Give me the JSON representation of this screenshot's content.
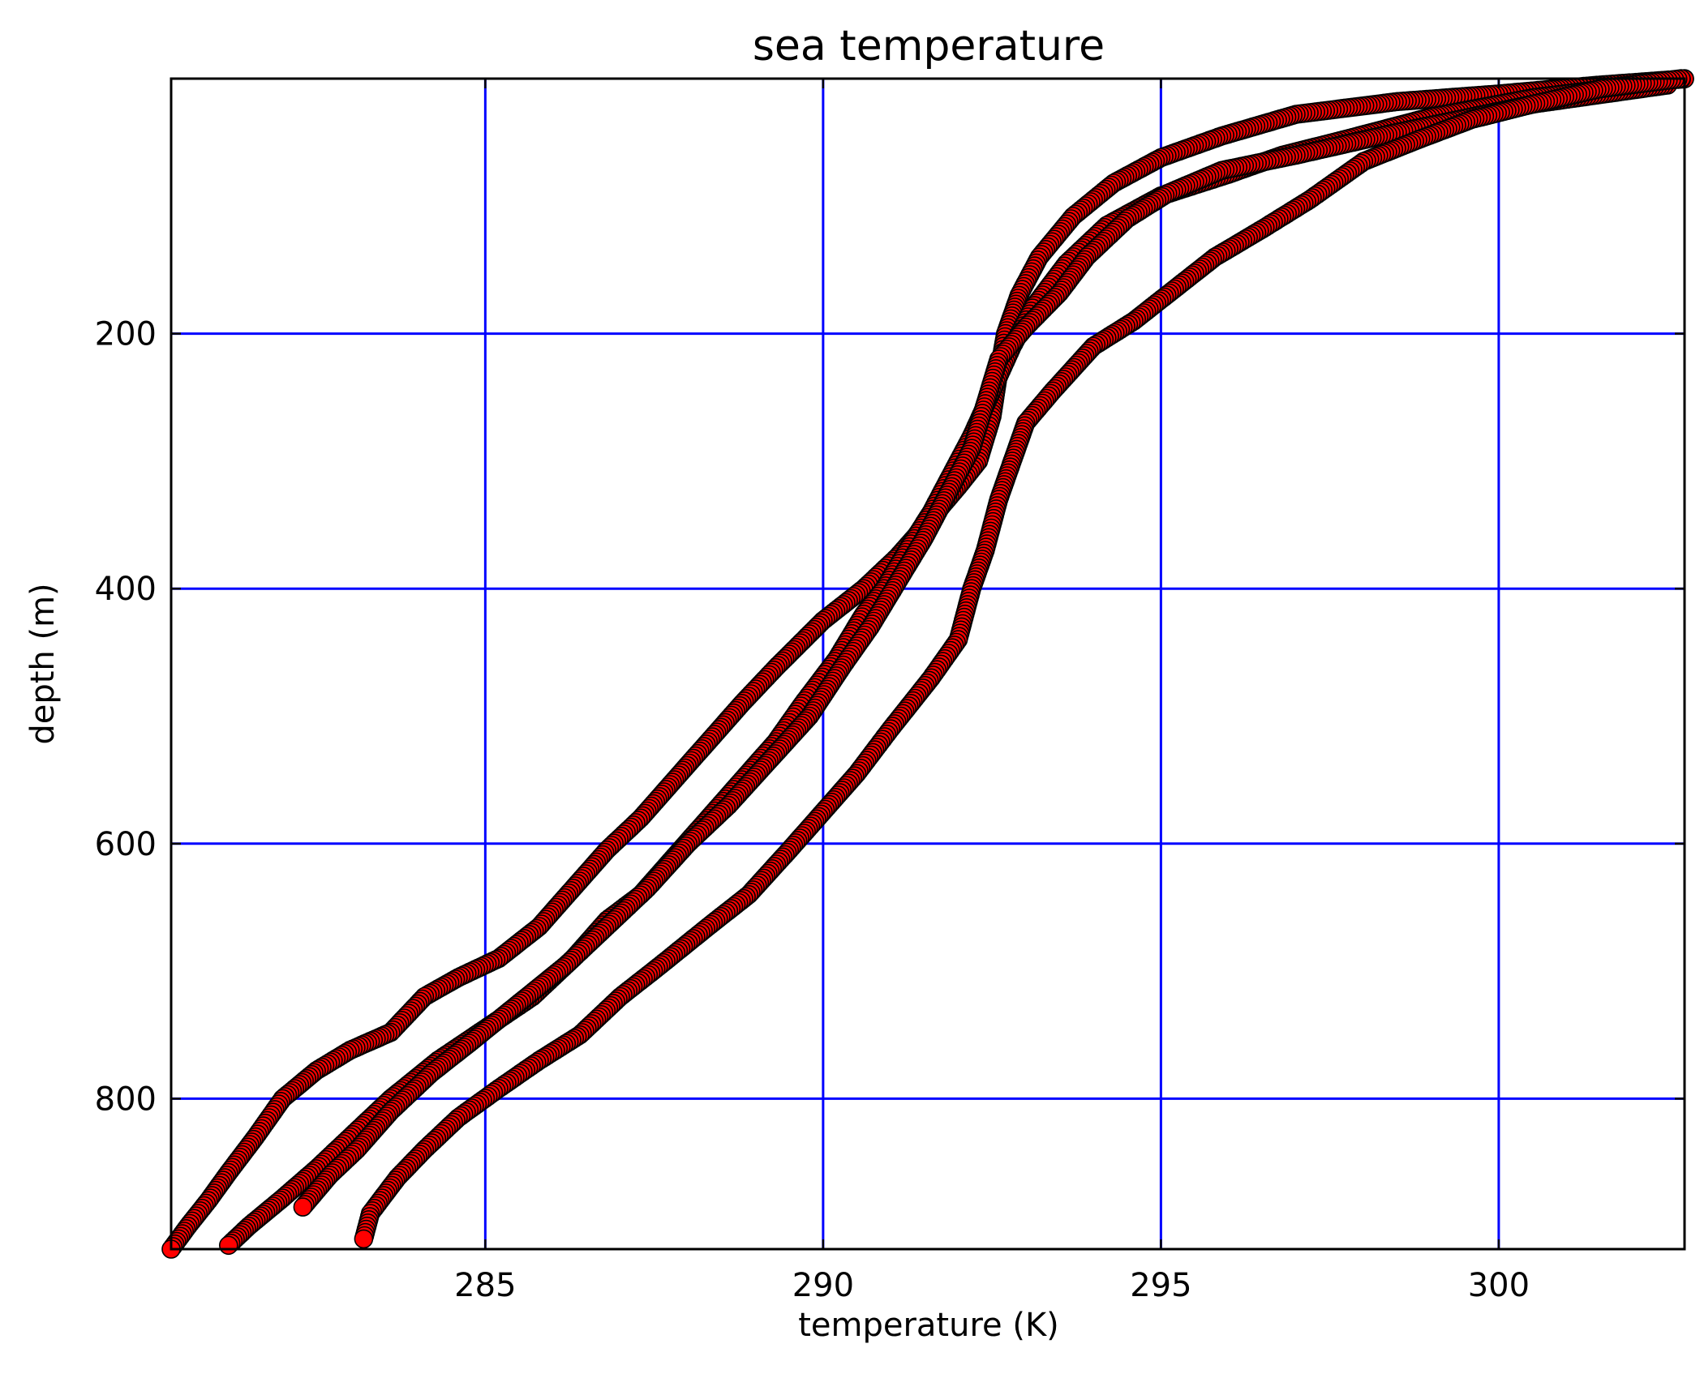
{
  "chart_data": {
    "type": "scatter",
    "title": "sea temperature",
    "xlabel": "temperature (K)",
    "ylabel": "depth (m)",
    "xlim": [
      280.35,
      302.75
    ],
    "ylim": [
      918,
      0
    ],
    "y_inverted": true,
    "xticks": [
      285,
      290,
      295,
      300
    ],
    "yticks": [
      200,
      400,
      600,
      800
    ],
    "xtick_labels": [
      "285",
      "290",
      "295",
      "300"
    ],
    "ytick_labels": [
      "200",
      "400",
      "600",
      "800"
    ],
    "grid": true,
    "legend": "none",
    "colors": {
      "marker_fill": "#ff0000",
      "marker_edge": "#000000",
      "grid": "#0000ff"
    },
    "series": [
      {
        "points": [
          [
            302.8,
            0
          ],
          [
            301.5,
            5
          ],
          [
            300.0,
            12
          ],
          [
            298.5,
            18
          ],
          [
            297.0,
            28
          ],
          [
            295.9,
            45
          ],
          [
            295.0,
            62
          ],
          [
            294.3,
            82
          ],
          [
            293.7,
            108
          ],
          [
            293.2,
            140
          ],
          [
            292.9,
            170
          ],
          [
            292.7,
            200
          ],
          [
            292.6,
            230
          ],
          [
            292.5,
            265
          ],
          [
            292.3,
            300
          ],
          [
            292.0,
            320
          ],
          [
            291.6,
            345
          ],
          [
            291.1,
            375
          ],
          [
            290.6,
            400
          ],
          [
            290.0,
            425
          ],
          [
            289.3,
            462
          ],
          [
            288.8,
            490
          ],
          [
            288.3,
            520
          ],
          [
            287.8,
            550
          ],
          [
            287.3,
            580
          ],
          [
            286.8,
            605
          ],
          [
            286.3,
            635
          ],
          [
            285.8,
            665
          ],
          [
            285.2,
            690
          ],
          [
            284.6,
            705
          ],
          [
            284.1,
            720
          ],
          [
            283.6,
            748
          ],
          [
            283.0,
            762
          ],
          [
            282.5,
            778
          ],
          [
            282.0,
            800
          ],
          [
            281.6,
            830
          ],
          [
            281.2,
            858
          ],
          [
            280.9,
            880
          ],
          [
            280.6,
            900
          ],
          [
            280.35,
            918
          ]
        ]
      },
      {
        "points": [
          [
            302.5,
            2
          ],
          [
            300.5,
            15
          ],
          [
            299.0,
            30
          ],
          [
            297.7,
            48
          ],
          [
            296.8,
            60
          ],
          [
            296.0,
            75
          ],
          [
            295.0,
            92
          ],
          [
            294.2,
            115
          ],
          [
            293.6,
            145
          ],
          [
            293.1,
            180
          ],
          [
            292.8,
            210
          ],
          [
            292.5,
            245
          ],
          [
            292.2,
            280
          ],
          [
            291.9,
            310
          ],
          [
            291.6,
            340
          ],
          [
            291.3,
            365
          ],
          [
            290.9,
            400
          ],
          [
            290.6,
            420
          ],
          [
            290.2,
            455
          ],
          [
            289.7,
            490
          ],
          [
            289.3,
            520
          ],
          [
            288.8,
            550
          ],
          [
            288.3,
            580
          ],
          [
            287.8,
            610
          ],
          [
            287.3,
            640
          ],
          [
            286.8,
            660
          ],
          [
            286.3,
            690
          ],
          [
            285.7,
            720
          ],
          [
            285.0,
            745
          ],
          [
            284.3,
            770
          ],
          [
            283.6,
            800
          ],
          [
            283.0,
            830
          ],
          [
            282.5,
            855
          ],
          [
            282.0,
            878
          ],
          [
            281.5,
            900
          ],
          [
            281.2,
            915
          ]
        ]
      },
      {
        "points": [
          [
            302.5,
            5
          ],
          [
            300.5,
            20
          ],
          [
            298.5,
            42
          ],
          [
            297.0,
            60
          ],
          [
            295.9,
            72
          ],
          [
            295.1,
            90
          ],
          [
            294.5,
            110
          ],
          [
            293.9,
            140
          ],
          [
            293.5,
            168
          ],
          [
            293.0,
            195
          ],
          [
            292.6,
            220
          ],
          [
            292.4,
            255
          ],
          [
            292.2,
            290
          ],
          [
            291.9,
            320
          ],
          [
            291.5,
            360
          ],
          [
            291.1,
            395
          ],
          [
            290.7,
            430
          ],
          [
            290.3,
            460
          ],
          [
            289.8,
            500
          ],
          [
            289.2,
            535
          ],
          [
            288.6,
            570
          ],
          [
            288.0,
            600
          ],
          [
            287.4,
            635
          ],
          [
            286.8,
            665
          ],
          [
            286.2,
            695
          ],
          [
            285.5,
            725
          ],
          [
            284.8,
            755
          ],
          [
            284.2,
            780
          ],
          [
            283.6,
            810
          ],
          [
            283.1,
            840
          ],
          [
            282.7,
            860
          ],
          [
            282.3,
            885
          ]
        ]
      },
      {
        "points": [
          [
            302.7,
            0
          ],
          [
            301.5,
            8
          ],
          [
            300.5,
            20
          ],
          [
            299.6,
            32
          ],
          [
            298.8,
            48
          ],
          [
            298.0,
            65
          ],
          [
            297.2,
            95
          ],
          [
            296.5,
            118
          ],
          [
            295.8,
            140
          ],
          [
            295.2,
            165
          ],
          [
            294.6,
            190
          ],
          [
            294.0,
            210
          ],
          [
            293.4,
            245
          ],
          [
            293.0,
            270
          ],
          [
            292.8,
            300
          ],
          [
            292.6,
            330
          ],
          [
            292.4,
            370
          ],
          [
            292.2,
            400
          ],
          [
            292.0,
            440
          ],
          [
            291.6,
            470
          ],
          [
            291.0,
            510
          ],
          [
            290.5,
            545
          ],
          [
            290.0,
            575
          ],
          [
            289.5,
            605
          ],
          [
            288.9,
            640
          ],
          [
            288.3,
            665
          ],
          [
            287.6,
            695
          ],
          [
            287.0,
            720
          ],
          [
            286.4,
            750
          ],
          [
            285.8,
            770
          ],
          [
            285.2,
            792
          ],
          [
            284.6,
            815
          ],
          [
            284.1,
            840
          ],
          [
            283.7,
            862
          ],
          [
            283.3,
            890
          ],
          [
            283.2,
            910
          ]
        ]
      }
    ]
  }
}
